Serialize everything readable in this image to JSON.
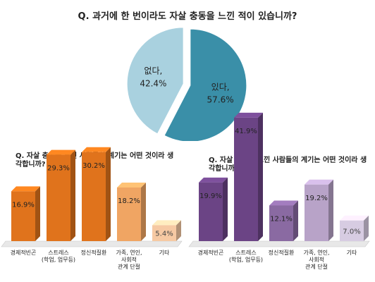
{
  "title": "Q. 과거에 한 번이라도 자살 충동을 느낀 적이 있습니까?",
  "chart_data": [
    {
      "type": "pie",
      "title": "Q. 과거에 한 번이라도 자살 충동을 느낀 적이 있습니까?",
      "slices": [
        {
          "label": "있다,",
          "value": 57.6,
          "value_label": "57.6%",
          "color": "#3a8fa8"
        },
        {
          "label": "없다,",
          "value": 42.4,
          "value_label": "42.4%",
          "color": "#a9d1df"
        }
      ]
    },
    {
      "type": "bar",
      "title": "Q. 자살 충동을 느낀 사람들의 계기는 어떤 것이라 생각합니까?",
      "categories": [
        "경제적빈곤",
        "스트레스\n(학업, 업무등)",
        "정신적질환",
        "가족, 연인,\n사회적\n관계 단절",
        "기타"
      ],
      "values": [
        16.9,
        29.3,
        30.2,
        18.2,
        5.4
      ],
      "value_labels": [
        "16.9%",
        "29.3%",
        "30.2%",
        "18.2%",
        "5.4%"
      ],
      "colors": [
        "#e0731c",
        "#e0731c",
        "#e0731c",
        "#f0a563",
        "#f6c9a3"
      ]
    },
    {
      "type": "bar",
      "title": "Q. 자살 충동을 느낀 사람들의 계기는 어떤 것이라 생각합니까?",
      "categories": [
        "경제적빈곤",
        "스트레스\n(학업, 업무등)",
        "정신적질환",
        "가족, 연인,\n사회적\n관계 단절",
        "기타"
      ],
      "values": [
        19.9,
        41.9,
        12.1,
        19.2,
        7.0
      ],
      "value_labels": [
        "19.9%",
        "41.9%",
        "12.1%",
        "19.2%",
        "7.0%"
      ],
      "colors": [
        "#6b4485",
        "#6b4485",
        "#8a6aa2",
        "#b8a3c8",
        "#d7cce2"
      ]
    }
  ]
}
